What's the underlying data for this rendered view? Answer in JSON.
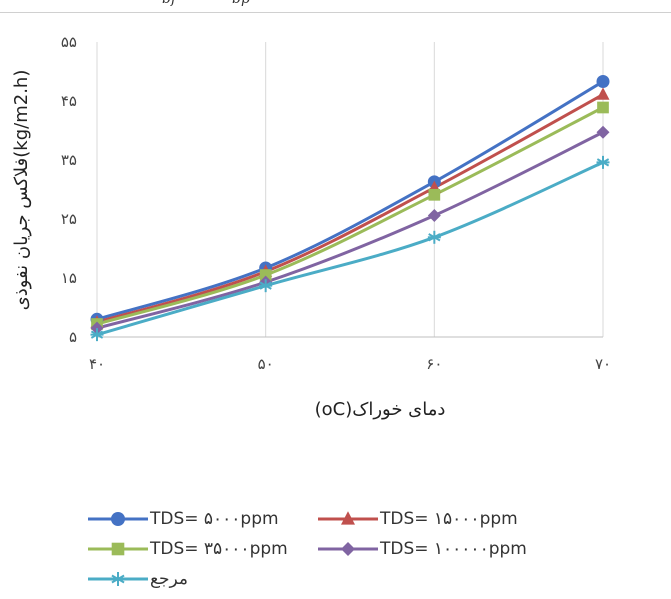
{
  "header_fragment": {
    "left": "bf",
    "right": "bp"
  },
  "chart_data": {
    "type": "line",
    "title": "",
    "xlabel": "دمای خوراک(oC)",
    "ylabel": "فلاکس جریان نفوذی(kg/m2.h)",
    "x": [
      40,
      50,
      60,
      70
    ],
    "x_tick_labels": [
      "۴۰",
      "۵۰",
      "۶۰",
      "۷۰"
    ],
    "ylim": [
      5,
      55
    ],
    "y_ticks": [
      5,
      15,
      25,
      35,
      45,
      55
    ],
    "y_tick_labels": [
      "۵",
      "۱۵",
      "۲۵",
      "۳۵",
      "۴۵",
      "۵۵"
    ],
    "grid": "vertical",
    "legend_position": "bottom",
    "series": [
      {
        "name": "TDS= ۵۰۰۰ppm",
        "values": [
          8.0,
          16.7,
          31.3,
          48.3
        ],
        "color": "#4472c4",
        "marker": "circle"
      },
      {
        "name": "TDS= ۱۵۰۰۰ppm",
        "values": [
          7.5,
          16.1,
          30.3,
          46.1
        ],
        "color": "#c0504d",
        "marker": "triangle"
      },
      {
        "name": "TDS= ۳۵۰۰۰ppm",
        "values": [
          7.2,
          15.5,
          29.1,
          43.9
        ],
        "color": "#9bbb59",
        "marker": "square"
      },
      {
        "name": "TDS= ۱۰۰۰۰۰ppm",
        "values": [
          6.5,
          14.3,
          25.6,
          39.7
        ],
        "color": "#8064a2",
        "marker": "diamond"
      },
      {
        "name": "مرجع",
        "values": [
          5.4,
          13.7,
          21.9,
          34.6
        ],
        "color": "#4bacc6",
        "marker": "star"
      }
    ]
  }
}
